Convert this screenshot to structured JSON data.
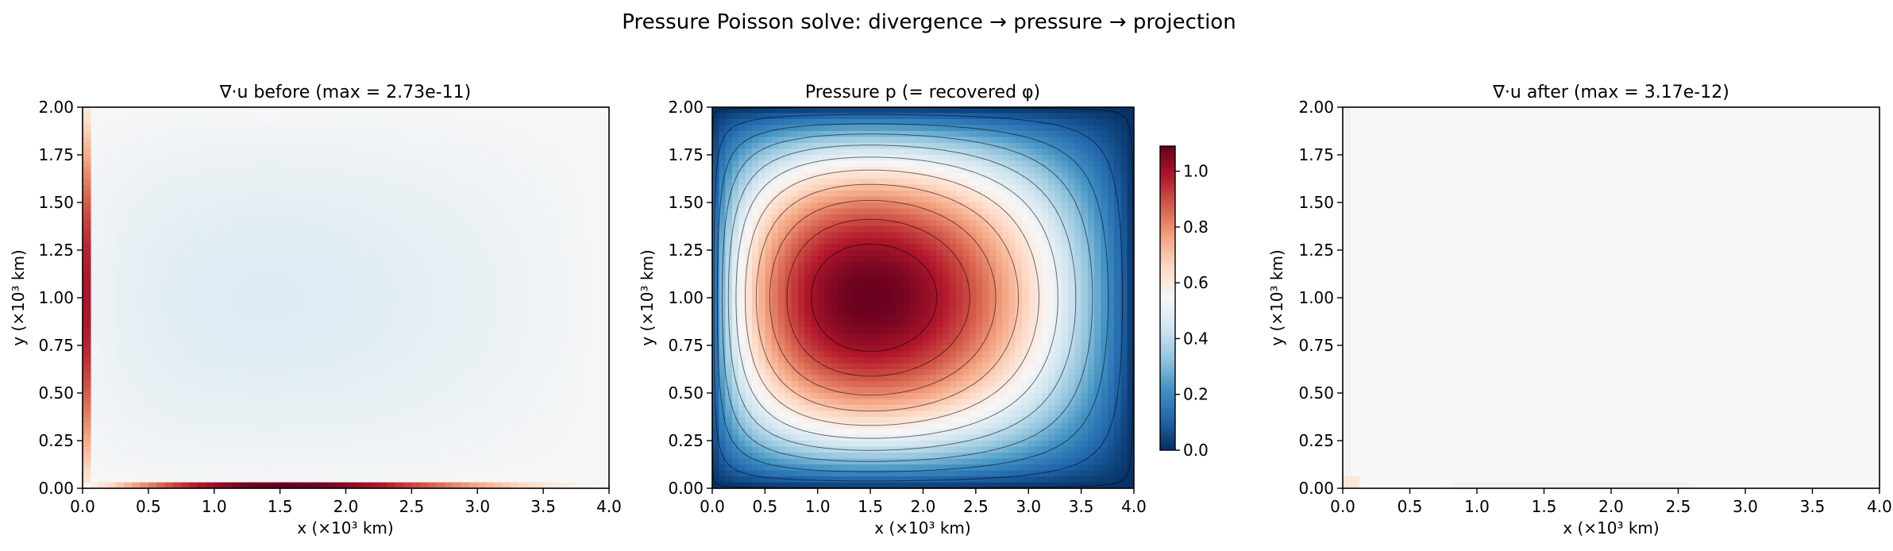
{
  "figure": {
    "suptitle": "Pressure Poisson solve: divergence → pressure → projection"
  },
  "chart_data": [
    {
      "type": "heatmap",
      "title": "∇·u before (max = 2.73e-11)",
      "xlabel": "x (×10³ km)",
      "ylabel": "y (×10³ km)",
      "xlim": [
        0,
        4
      ],
      "ylim": [
        0,
        2
      ],
      "xticks": [
        "0.0",
        "0.5",
        "1.0",
        "1.5",
        "2.0",
        "2.5",
        "3.0",
        "3.5",
        "4.0"
      ],
      "yticks": [
        "0.00",
        "0.25",
        "0.50",
        "0.75",
        "1.00",
        "1.25",
        "1.50",
        "1.75",
        "2.00"
      ],
      "colormap": "RdBu_r",
      "clim": [
        -2.73e-11,
        2.73e-11
      ],
      "grid_shape": [
        64,
        64
      ],
      "grid": false,
      "colorbar": false
    },
    {
      "type": "heatmap",
      "title": "Pressure p (= recovered φ)",
      "xlabel": "x (×10³ km)",
      "ylabel": "y (×10³ km)",
      "xlim": [
        0,
        4
      ],
      "ylim": [
        0,
        2
      ],
      "xticks": [
        "0.0",
        "0.5",
        "1.0",
        "1.5",
        "2.0",
        "2.5",
        "3.0",
        "3.5",
        "4.0"
      ],
      "yticks": [
        "0.00",
        "0.25",
        "0.50",
        "0.75",
        "1.00",
        "1.25",
        "1.50",
        "1.75",
        "2.00"
      ],
      "colormap": "RdBu_r",
      "clim": [
        0,
        1.09
      ],
      "grid_shape": [
        64,
        64
      ],
      "peak": {
        "x": 1.5,
        "y": 1.0,
        "value": 1.09
      },
      "contour_levels": [
        0.01,
        0.1,
        0.2,
        0.3,
        0.4,
        0.5,
        0.6,
        0.7,
        0.8,
        0.9,
        1.0
      ],
      "contour_color": "#000000",
      "grid": false,
      "colorbar": true,
      "colorbar_ticks": [
        "0.0",
        "0.2",
        "0.4",
        "0.6",
        "0.8",
        "1.0"
      ]
    },
    {
      "type": "heatmap",
      "title": "∇·u after (max = 3.17e-12)",
      "xlabel": "x (×10³ km)",
      "ylabel": "y (×10³ km)",
      "xlim": [
        0,
        4
      ],
      "ylim": [
        0,
        2
      ],
      "xticks": [
        "0.0",
        "0.5",
        "1.0",
        "1.5",
        "2.0",
        "2.5",
        "3.0",
        "3.5",
        "4.0"
      ],
      "yticks": [
        "0.00",
        "0.25",
        "0.50",
        "0.75",
        "1.00",
        "1.25",
        "1.50",
        "1.75",
        "2.00"
      ],
      "colormap": "RdBu_r",
      "clim": [
        -3.17e-12,
        3.17e-12
      ],
      "grid_shape": [
        64,
        64
      ],
      "grid": false,
      "colorbar": false
    }
  ]
}
